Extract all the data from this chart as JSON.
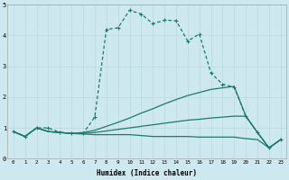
{
  "xlabel": "Humidex (Indice chaleur)",
  "xlim": [
    -0.5,
    23.5
  ],
  "ylim": [
    0,
    5
  ],
  "xticks": [
    0,
    1,
    2,
    3,
    4,
    5,
    6,
    7,
    8,
    9,
    10,
    11,
    12,
    13,
    14,
    15,
    16,
    17,
    18,
    19,
    20,
    21,
    22,
    23
  ],
  "yticks": [
    0,
    1,
    2,
    3,
    4,
    5
  ],
  "background_color": "#cde8ef",
  "grid_color": "#b8d9e2",
  "line_color": "#1a7a6e",
  "lines": [
    {
      "x": [
        0,
        1,
        2,
        3,
        4,
        5,
        6,
        7,
        8,
        9,
        10,
        11,
        12,
        13,
        14,
        15,
        16,
        17,
        18,
        19,
        20,
        21,
        22,
        23
      ],
      "y": [
        0.88,
        0.72,
        1.0,
        1.0,
        0.85,
        0.82,
        0.82,
        1.35,
        4.2,
        4.25,
        4.82,
        4.7,
        4.38,
        4.5,
        4.48,
        3.82,
        4.05,
        2.78,
        2.42,
        2.32,
        1.38,
        0.85,
        0.35,
        0.62
      ],
      "marker": true
    },
    {
      "x": [
        0,
        1,
        2,
        3,
        4,
        5,
        6,
        7,
        8,
        9,
        10,
        11,
        12,
        13,
        14,
        15,
        16,
        17,
        18,
        19,
        20,
        21,
        22,
        23
      ],
      "y": [
        0.88,
        0.72,
        1.0,
        0.88,
        0.85,
        0.82,
        0.85,
        0.92,
        1.05,
        1.18,
        1.32,
        1.48,
        1.62,
        1.78,
        1.92,
        2.05,
        2.15,
        2.25,
        2.3,
        2.35,
        1.38,
        0.85,
        0.35,
        0.62
      ],
      "marker": false
    },
    {
      "x": [
        0,
        1,
        2,
        3,
        4,
        5,
        6,
        7,
        8,
        9,
        10,
        11,
        12,
        13,
        14,
        15,
        16,
        17,
        18,
        19,
        20,
        21,
        22,
        23
      ],
      "y": [
        0.88,
        0.72,
        1.0,
        0.88,
        0.85,
        0.82,
        0.82,
        0.85,
        0.9,
        0.95,
        1.0,
        1.05,
        1.1,
        1.15,
        1.2,
        1.25,
        1.28,
        1.32,
        1.35,
        1.38,
        1.38,
        0.85,
        0.35,
        0.62
      ],
      "marker": false
    },
    {
      "x": [
        0,
        1,
        2,
        3,
        4,
        5,
        6,
        7,
        8,
        9,
        10,
        11,
        12,
        13,
        14,
        15,
        16,
        17,
        18,
        19,
        20,
        21,
        22,
        23
      ],
      "y": [
        0.88,
        0.72,
        1.0,
        0.88,
        0.85,
        0.82,
        0.8,
        0.78,
        0.78,
        0.78,
        0.78,
        0.75,
        0.72,
        0.72,
        0.72,
        0.72,
        0.7,
        0.7,
        0.7,
        0.7,
        0.65,
        0.62,
        0.35,
        0.62
      ],
      "marker": false
    }
  ]
}
